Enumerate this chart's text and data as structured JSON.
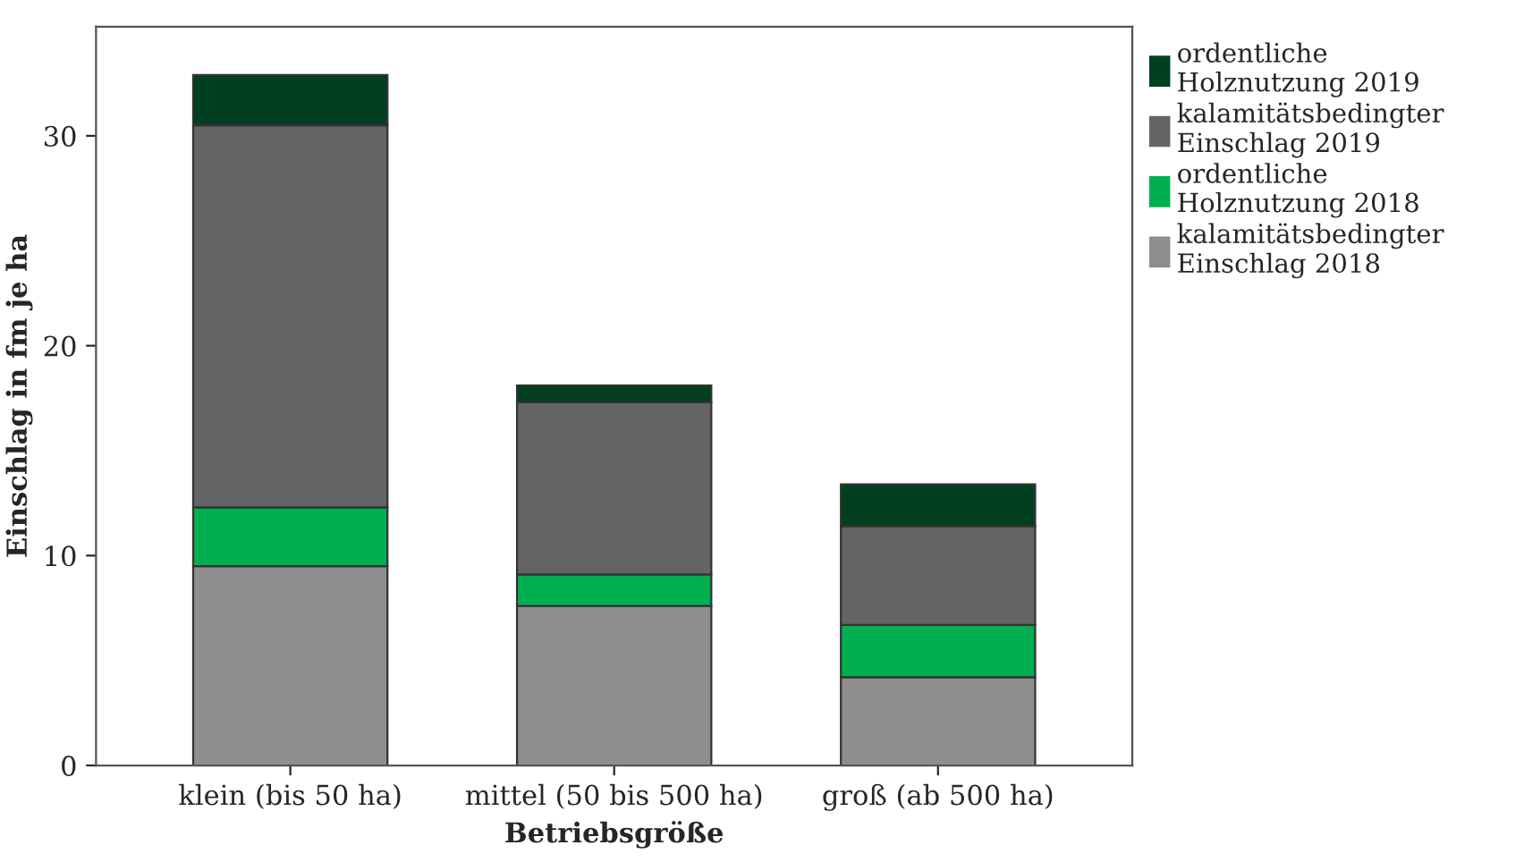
{
  "chart_data": {
    "type": "bar",
    "stacked": true,
    "xlabel": "Betriebsgröße",
    "ylabel": "Einschlag in fm je ha",
    "categories": [
      "klein (bis 50 ha)",
      "mittel (50 bis 500 ha)",
      "groß (ab 500 ha)"
    ],
    "series": [
      {
        "name": "kalamitätsbedingter\nEinschlag 2018",
        "color": "#8e8e90",
        "values": [
          9.5,
          7.6,
          4.2
        ]
      },
      {
        "name": "ordentliche\nHolznutzung 2018",
        "color": "#00b050",
        "values": [
          2.8,
          1.5,
          2.5
        ]
      },
      {
        "name": "kalamitätsbedingter\nEinschlag 2019",
        "color": "#646466",
        "values": [
          18.2,
          8.2,
          4.7
        ]
      },
      {
        "name": "ordentliche\nHolznutzung 2019",
        "color": "#004020",
        "values": [
          2.4,
          0.8,
          2.0
        ]
      }
    ],
    "ylim": [
      0,
      35.2
    ],
    "yticks": [
      0,
      10,
      20,
      30
    ],
    "grid": false,
    "legend": "right"
  }
}
